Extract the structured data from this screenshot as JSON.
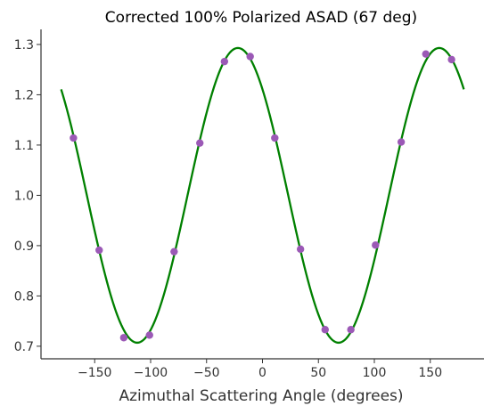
{
  "chart_data": {
    "type": "scatter",
    "title": "Corrected 100% Polarized ASAD (67 deg)",
    "xlabel": "Azimuthal Scattering Angle (degrees)",
    "ylabel": "",
    "xlim": [
      -198,
      198
    ],
    "ylim": [
      0.675,
      1.33
    ],
    "xticks": [
      -150,
      -100,
      -50,
      0,
      50,
      100,
      150
    ],
    "xtick_labels": [
      "−150",
      "−100",
      "−50",
      "0",
      "50",
      "100",
      "150"
    ],
    "yticks": [
      0.7,
      0.8,
      0.9,
      1.0,
      1.1,
      1.2,
      1.3
    ],
    "ytick_labels": [
      "0.7",
      "0.8",
      "0.9",
      "1.0",
      "1.1",
      "1.2",
      "1.3"
    ],
    "grid": false,
    "legend": "none",
    "series": [
      {
        "kind": "scatter",
        "color": "#9b59b6",
        "points": [
          {
            "x": -169,
            "y": 1.114
          },
          {
            "x": -146,
            "y": 0.891
          },
          {
            "x": -124,
            "y": 0.717
          },
          {
            "x": -101,
            "y": 0.722
          },
          {
            "x": -79,
            "y": 0.888
          },
          {
            "x": -56,
            "y": 1.104
          },
          {
            "x": -34,
            "y": 1.266
          },
          {
            "x": -11,
            "y": 1.276
          },
          {
            "x": 11,
            "y": 1.114
          },
          {
            "x": 34,
            "y": 0.893
          },
          {
            "x": 56,
            "y": 0.733
          },
          {
            "x": 79,
            "y": 0.733
          },
          {
            "x": 101,
            "y": 0.901
          },
          {
            "x": 124,
            "y": 1.106
          },
          {
            "x": 146,
            "y": 1.281
          },
          {
            "x": 169,
            "y": 1.27
          }
        ]
      },
      {
        "kind": "fit-curve",
        "color": "#008000",
        "model": "y = a + b * cos(2*(x - phi))",
        "params": {
          "a": 1.0,
          "b": 0.293,
          "phi": -22
        },
        "x_range": [
          -180,
          180
        ]
      }
    ]
  }
}
